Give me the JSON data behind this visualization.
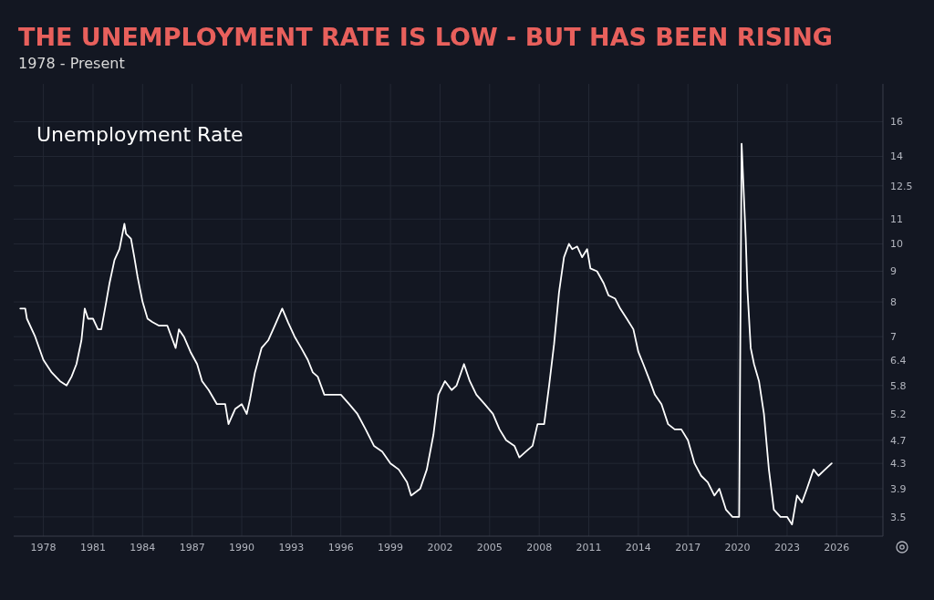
{
  "chart_data": {
    "type": "line",
    "title": "THE UNEMPLOYMENT RATE IS LOW - BUT HAS BEEN RISING",
    "subtitle": "1978 - Present",
    "log": true,
    "grid": true,
    "marker": "none",
    "line_style": "solid",
    "xlim": [
      1976.2,
      2028.8
    ],
    "xticks": [
      1978,
      1981,
      1984,
      1987,
      1990,
      1993,
      1996,
      1999,
      2002,
      2005,
      2008,
      2011,
      2014,
      2017,
      2020,
      2023,
      2026
    ],
    "ylim": [
      3.25,
      18.5
    ],
    "yticks": [
      3.5,
      3.9,
      4.3,
      4.7,
      5.2,
      5.8,
      6.4,
      7,
      8,
      9,
      10,
      11,
      12.5,
      14,
      16
    ],
    "series": [
      {
        "name": "Unemployment Rate",
        "color": "#ffffff",
        "x": [
          1976.6,
          1976.9,
          1977.0,
          1977.5,
          1978.0,
          1978.5,
          1979.0,
          1979.4,
          1979.7,
          1980.0,
          1980.3,
          1980.5,
          1980.7,
          1981.0,
          1981.3,
          1981.5,
          1981.8,
          1982.0,
          1982.3,
          1982.6,
          1982.9,
          1983.0,
          1983.3,
          1983.5,
          1983.7,
          1984.0,
          1984.3,
          1984.6,
          1985.0,
          1985.5,
          1986.0,
          1986.2,
          1986.5,
          1986.9,
          1987.3,
          1987.6,
          1988.0,
          1988.5,
          1989.0,
          1989.2,
          1989.6,
          1990.0,
          1990.3,
          1990.5,
          1990.8,
          1991.2,
          1991.6,
          1992.0,
          1992.45,
          1992.8,
          1993.2,
          1993.6,
          1994.0,
          1994.3,
          1994.6,
          1995.0,
          1995.5,
          1996.0,
          1996.5,
          1997.0,
          1997.5,
          1998.0,
          1998.5,
          1999.0,
          1999.5,
          2000.0,
          2000.25,
          2000.8,
          2001.2,
          2001.6,
          2001.9,
          2002.3,
          2002.7,
          2003.0,
          2003.45,
          2003.8,
          2004.2,
          2004.7,
          2005.2,
          2005.6,
          2006.0,
          2006.5,
          2006.8,
          2007.2,
          2007.6,
          2007.9,
          2008.3,
          2008.6,
          2008.9,
          2009.2,
          2009.5,
          2009.8,
          2010.0,
          2010.3,
          2010.6,
          2010.9,
          2011.1,
          2011.5,
          2011.9,
          2012.2,
          2012.6,
          2012.9,
          2013.3,
          2013.7,
          2014.0,
          2014.3,
          2014.7,
          2015.0,
          2015.4,
          2015.8,
          2016.2,
          2016.6,
          2017.0,
          2017.4,
          2017.8,
          2018.2,
          2018.6,
          2018.9,
          2019.3,
          2019.7,
          2020.1,
          2020.25,
          2020.5,
          2020.6,
          2020.8,
          2021.0,
          2021.3,
          2021.6,
          2021.9,
          2022.2,
          2022.6,
          2023.0,
          2023.3,
          2023.6,
          2023.9,
          2024.2,
          2024.6,
          2024.9,
          2025.3,
          2025.7
        ],
        "values": [
          7.8,
          7.8,
          7.5,
          7.0,
          6.4,
          6.1,
          5.9,
          5.8,
          6.0,
          6.3,
          6.9,
          7.8,
          7.5,
          7.5,
          7.2,
          7.2,
          8.0,
          8.6,
          9.4,
          9.8,
          10.8,
          10.4,
          10.2,
          9.5,
          8.8,
          8.0,
          7.5,
          7.4,
          7.3,
          7.3,
          6.7,
          7.2,
          7.0,
          6.6,
          6.3,
          5.9,
          5.7,
          5.4,
          5.4,
          5.0,
          5.3,
          5.4,
          5.2,
          5.5,
          6.1,
          6.7,
          6.9,
          7.3,
          7.8,
          7.4,
          7.0,
          6.7,
          6.4,
          6.1,
          6.0,
          5.6,
          5.6,
          5.6,
          5.4,
          5.2,
          4.9,
          4.6,
          4.5,
          4.3,
          4.2,
          4.0,
          3.8,
          3.9,
          4.2,
          4.8,
          5.6,
          5.9,
          5.7,
          5.8,
          6.3,
          5.9,
          5.6,
          5.4,
          5.2,
          4.9,
          4.7,
          4.6,
          4.4,
          4.5,
          4.6,
          5.0,
          5.0,
          5.8,
          6.8,
          8.3,
          9.5,
          10.0,
          9.8,
          9.9,
          9.5,
          9.8,
          9.1,
          9.0,
          8.6,
          8.2,
          8.1,
          7.8,
          7.5,
          7.2,
          6.6,
          6.3,
          5.9,
          5.6,
          5.4,
          5.0,
          4.9,
          4.9,
          4.7,
          4.3,
          4.1,
          4.0,
          3.8,
          3.9,
          3.6,
          3.5,
          3.5,
          14.7,
          10.2,
          8.4,
          6.7,
          6.3,
          5.9,
          5.2,
          4.2,
          3.6,
          3.5,
          3.5,
          3.4,
          3.8,
          3.7,
          3.9,
          4.2,
          4.1,
          4.2,
          4.3
        ]
      }
    ]
  }
}
